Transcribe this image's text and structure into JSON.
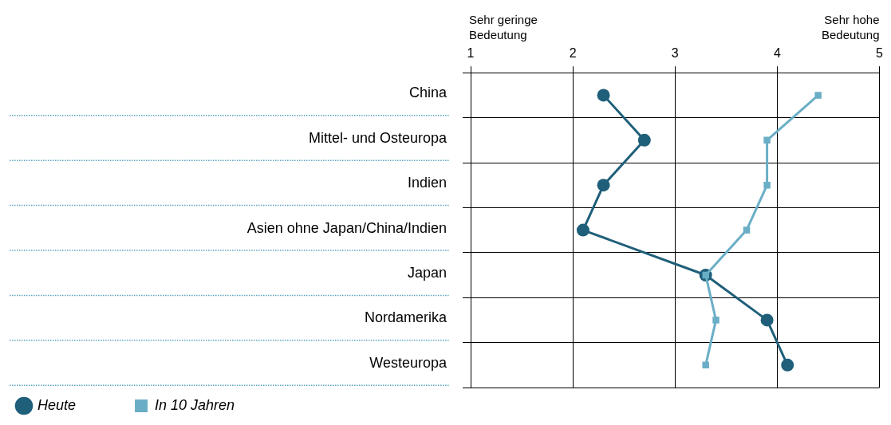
{
  "chart_data": {
    "type": "line",
    "orientation": "horizontal",
    "categories": [
      "China",
      "Mittel- und Osteuropa",
      "Indien",
      "Asien ohne Japan/China/Indien",
      "Japan",
      "Nordamerika",
      "Westeuropa"
    ],
    "series": [
      {
        "name": "Heute",
        "color": "#1f5f7a",
        "marker": "circle",
        "values": [
          2.3,
          2.7,
          2.3,
          2.1,
          3.3,
          3.9,
          4.1
        ]
      },
      {
        "name": "In 10 Jahren",
        "color": "#6aaec6",
        "marker": "square",
        "values": [
          4.4,
          3.9,
          3.9,
          3.7,
          3.3,
          3.4,
          3.3
        ]
      }
    ],
    "xlim": [
      1,
      5
    ],
    "xticks": [
      1,
      2,
      3,
      4,
      5
    ],
    "grid": true,
    "legend": "bottom left",
    "line_style": "solid",
    "annotations": [
      "Sehr geringe\nBedeutung",
      "Sehr hohe\nBedeutung"
    ]
  }
}
